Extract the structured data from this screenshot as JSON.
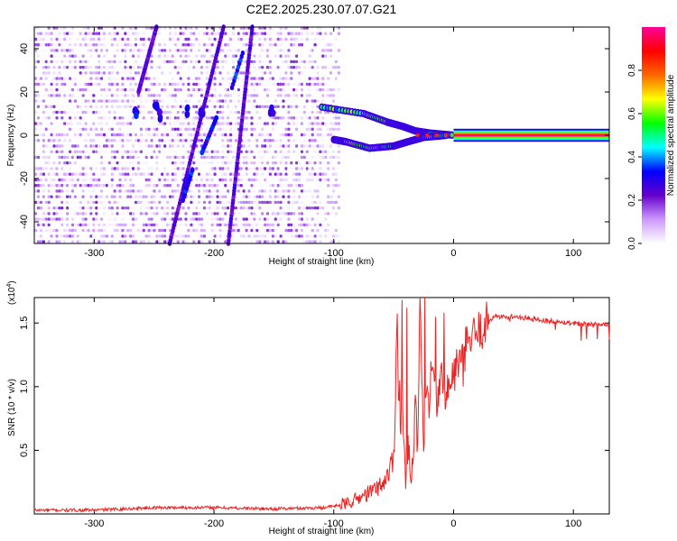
{
  "figure": {
    "title": "C2E2.2025.230.07.07.G21"
  },
  "chart_data": [
    {
      "type": "heatmap",
      "title": "C2E2.2025.230.07.07.G21",
      "xlabel": "Height of straight line (km)",
      "ylabel": "Frequency (Hz)",
      "xlim": [
        -350,
        130
      ],
      "ylim": [
        -50,
        50
      ],
      "xticks": [
        -300,
        -200,
        -100,
        0,
        100
      ],
      "yticks": [
        -40,
        -20,
        0,
        20,
        40
      ],
      "grid": false,
      "colorbar": {
        "label": "Normalized spectral amplitude",
        "range": [
          0,
          1
        ],
        "ticks": [
          0.0,
          0.2,
          0.4,
          0.6,
          0.8
        ],
        "colors": [
          "#ffffff",
          "#cc99ff",
          "#6600cc",
          "#0000ff",
          "#00ffff",
          "#00ff00",
          "#ffff00",
          "#ff6600",
          "#ff0000",
          "#ff0099"
        ]
      },
      "features": {
        "noise_region_x": [
          -350,
          -95
        ],
        "noise_amplitude": [
          0.0,
          0.2
        ],
        "diagonal_tracks": [
          {
            "x": [
              -237,
              -192
            ],
            "y": [
              -50,
              50
            ]
          },
          {
            "x": [
              -188,
              -168
            ],
            "y": [
              -50,
              50
            ]
          },
          {
            "x": [
              -263,
              -248
            ],
            "y": [
              20,
              50
            ]
          }
        ],
        "tone_blobs": [
          {
            "x": -265,
            "y": 11,
            "amplitude": 0.35
          },
          {
            "x": -248,
            "y": 12,
            "amplitude": 0.35
          },
          {
            "x": -245,
            "y": 9,
            "amplitude": 0.3
          },
          {
            "x": -222,
            "y": 11,
            "amplitude": 0.35
          },
          {
            "x": -210,
            "y": 10,
            "amplitude": 0.3
          },
          {
            "x": -152,
            "y": 11,
            "amplitude": 0.3
          }
        ],
        "upper_branch": {
          "x": [
            -110,
            -75,
            -55,
            -42,
            -32,
            -20,
            0
          ],
          "y": [
            13,
            10,
            6,
            4,
            2,
            1,
            0
          ]
        },
        "lower_branch": {
          "x": [
            -100,
            -90,
            -70,
            -50,
            -38,
            -25,
            -5
          ],
          "y": [
            -2,
            -3,
            -6,
            -5,
            -3,
            -1,
            0
          ]
        },
        "carrier": {
          "x": [
            0,
            130
          ],
          "y": 0,
          "amplitude": 1.0
        }
      }
    },
    {
      "type": "line",
      "xlabel": "Height of straight line (km)",
      "ylabel": "SNR (10 * v/v)",
      "y_multiplier": "(x10",
      "y_multiplier_exp": "4",
      "xlim": [
        -350,
        130
      ],
      "ylim": [
        0,
        1.7
      ],
      "xticks": [
        -300,
        -200,
        -100,
        0,
        100
      ],
      "yticks": [
        0.5,
        1.0,
        1.5
      ],
      "grid": false,
      "line_color": "#ee2222",
      "series": [
        {
          "x": [
            -350,
            -300,
            -250,
            -200,
            -150,
            -110,
            -100,
            -90,
            -80,
            -70,
            -60,
            -55,
            -50,
            -47,
            -45,
            -43,
            -40,
            -38,
            -35,
            -32,
            -30,
            -28,
            -25,
            -22,
            -20,
            -18,
            -15,
            -10,
            -5,
            0,
            5,
            10,
            15,
            20,
            25,
            30,
            35,
            50,
            75,
            100,
            130
          ],
          "y": [
            0.03,
            0.03,
            0.05,
            0.05,
            0.04,
            0.05,
            0.06,
            0.08,
            0.12,
            0.17,
            0.23,
            0.3,
            0.45,
            1.55,
            0.6,
            0.95,
            0.2,
            0.6,
            0.25,
            0.9,
            0.45,
            1.7,
            0.5,
            1.0,
            0.75,
            1.15,
            0.85,
            1.05,
            0.95,
            1.1,
            1.2,
            1.3,
            1.38,
            1.42,
            1.47,
            1.53,
            1.55,
            1.55,
            1.52,
            1.5,
            1.48
          ],
          "spikes": [
            {
              "x": -45,
              "y": 1.05
            },
            {
              "x": -43,
              "y": 1.68
            },
            {
              "x": -39,
              "y": 1.62
            },
            {
              "x": -24,
              "y": 1.76
            },
            {
              "x": -19,
              "y": 1.2
            },
            {
              "x": -15,
              "y": 1.55
            },
            {
              "x": -8,
              "y": 1.58
            },
            {
              "x": 8,
              "y": 1.0
            }
          ]
        }
      ]
    }
  ]
}
